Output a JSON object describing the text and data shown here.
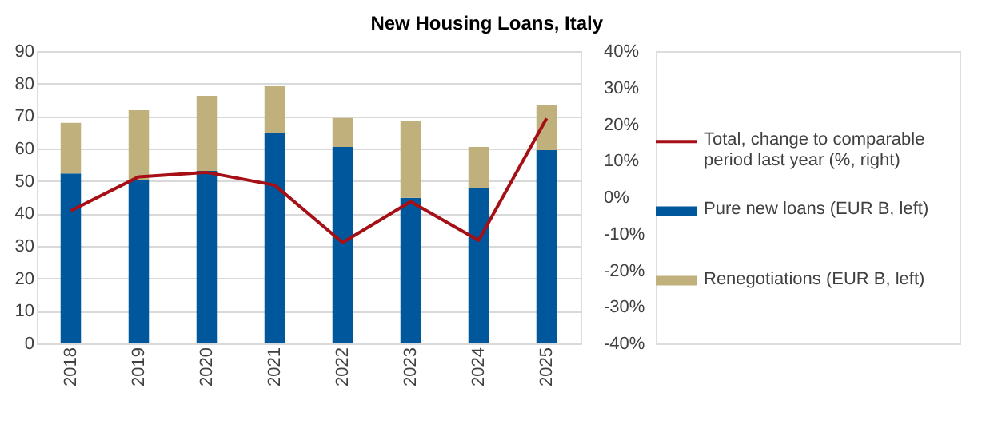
{
  "chart_data": {
    "type": "bar",
    "title": "New Housing Loans, Italy",
    "categories": [
      "2018",
      "2019",
      "2020",
      "2021",
      "2022",
      "2023",
      "2024",
      "2025"
    ],
    "stacked": true,
    "series": [
      {
        "name": "Pure new loans (EUR B, left)",
        "color": "#01579b",
        "values": [
          52.3,
          50.2,
          53.1,
          64.9,
          60.5,
          44.8,
          47.7,
          59.5
        ]
      },
      {
        "name": "Renegotiations (EUR B, left)",
        "color": "#bfb07c",
        "values": [
          15.6,
          21.6,
          23.1,
          14.3,
          8.9,
          23.6,
          12.8,
          13.8
        ]
      },
      {
        "name": "Total, change to comparable period last year (%, right)",
        "type": "line",
        "axis": "y2",
        "color": "#a50f15",
        "values": [
          -3.7,
          5.6,
          6.8,
          3.3,
          -12.4,
          -1.2,
          -11.8,
          21.6
        ]
      }
    ],
    "ylim": [
      0,
      90
    ],
    "yticks": [
      0,
      10,
      20,
      30,
      40,
      50,
      60,
      70,
      80,
      90
    ],
    "y2lim": [
      -40,
      40
    ],
    "y2ticks": [
      {
        "value": -40,
        "label": "-40%"
      },
      {
        "value": -30,
        "label": "-30%"
      },
      {
        "value": -20,
        "label": "-20%"
      },
      {
        "value": -10,
        "label": "-10%"
      },
      {
        "value": 0,
        "label": "0%"
      },
      {
        "value": 10,
        "label": "10%"
      },
      {
        "value": 20,
        "label": "20%"
      },
      {
        "value": 30,
        "label": "30%"
      },
      {
        "value": 40,
        "label": "40%"
      }
    ],
    "grid": "y",
    "legend": "right",
    "marker": "none",
    "line_style": "solid"
  }
}
